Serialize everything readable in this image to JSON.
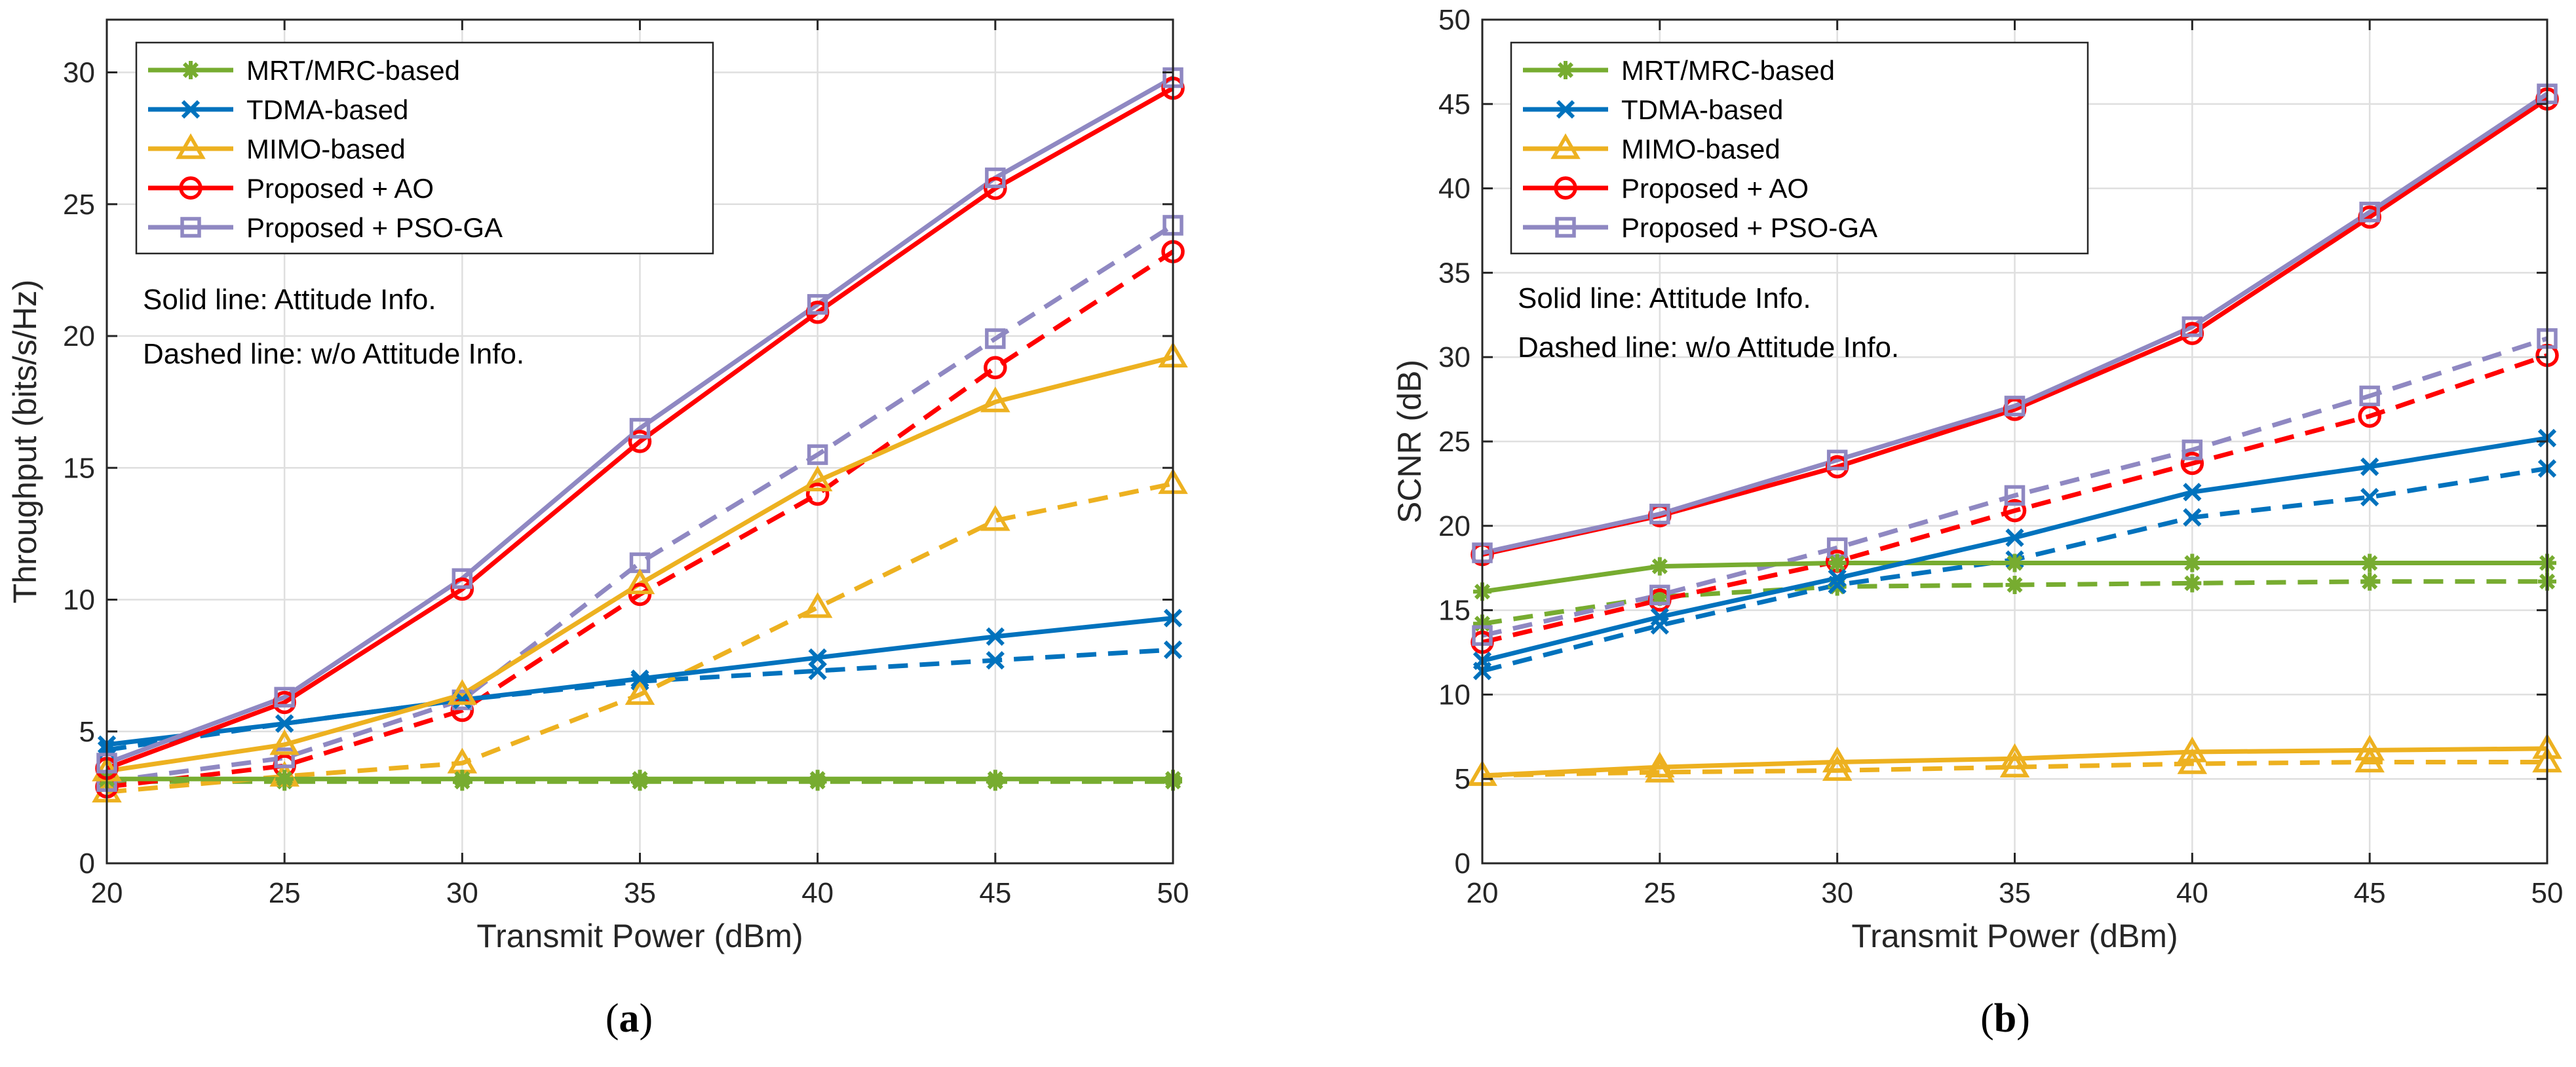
{
  "legend_entries": [
    {
      "name": "MRT/MRC-based",
      "color": "#77ac30",
      "marker": "asterisk"
    },
    {
      "name": "TDMA-based",
      "color": "#0072bd",
      "marker": "x"
    },
    {
      "name": "MIMO-based",
      "color": "#edb120",
      "marker": "triangle"
    },
    {
      "name": "Proposed + AO",
      "color": "#ff0000",
      "marker": "circle"
    },
    {
      "name": "Proposed + PSO-GA",
      "color": "#8f88c2",
      "marker": "square"
    }
  ],
  "chart_data": [
    {
      "type": "line",
      "caption": {
        "open": "(",
        "letter": "a",
        "close": ")"
      },
      "xlabel": "Transmit Power (dBm)",
      "ylabel": "Throughput (bits/s/Hz)",
      "xlim": [
        20,
        50
      ],
      "ylim": [
        0,
        32
      ],
      "xticks": [
        20,
        25,
        30,
        35,
        40,
        45,
        50
      ],
      "yticks": [
        0,
        5,
        10,
        15,
        20,
        25,
        30
      ],
      "grid": true,
      "legend_position": "top-left",
      "annotations": [
        "Solid line: Attitude Info.",
        "Dashed line: w/o Attitude Info."
      ],
      "x": [
        20,
        25,
        30,
        35,
        40,
        45,
        50
      ],
      "series": [
        {
          "name": "MRT/MRC-based",
          "line_style": "solid",
          "values": [
            3.2,
            3.2,
            3.2,
            3.2,
            3.2,
            3.2,
            3.2
          ]
        },
        {
          "name": "TDMA-based",
          "line_style": "solid",
          "values": [
            4.5,
            5.3,
            6.2,
            7.0,
            7.8,
            8.6,
            9.3
          ]
        },
        {
          "name": "MIMO-based",
          "line_style": "solid",
          "values": [
            3.5,
            4.5,
            6.4,
            10.6,
            14.5,
            17.5,
            19.2
          ]
        },
        {
          "name": "Proposed + AO",
          "line_style": "solid",
          "values": [
            3.6,
            6.1,
            10.4,
            16.0,
            20.9,
            25.6,
            29.4
          ]
        },
        {
          "name": "Proposed + PSO-GA",
          "line_style": "solid",
          "values": [
            3.8,
            6.3,
            10.8,
            16.5,
            21.2,
            26.0,
            29.8
          ]
        },
        {
          "name": "MRT/MRC-based",
          "line_style": "dashed",
          "values": [
            3.1,
            3.1,
            3.1,
            3.1,
            3.1,
            3.1,
            3.1
          ]
        },
        {
          "name": "TDMA-based",
          "line_style": "dashed",
          "values": [
            4.3,
            5.3,
            6.2,
            6.9,
            7.3,
            7.7,
            8.1
          ]
        },
        {
          "name": "MIMO-based",
          "line_style": "dashed",
          "values": [
            2.7,
            3.3,
            3.8,
            6.4,
            9.7,
            13.0,
            14.4
          ]
        },
        {
          "name": "Proposed + AO",
          "line_style": "dashed",
          "values": [
            2.9,
            3.7,
            5.8,
            10.2,
            14.0,
            18.8,
            23.2
          ]
        },
        {
          "name": "Proposed + PSO-GA",
          "line_style": "dashed",
          "values": [
            3.1,
            4.0,
            6.2,
            11.4,
            15.5,
            19.9,
            24.2
          ]
        }
      ]
    },
    {
      "type": "line",
      "caption": {
        "open": "(",
        "letter": "b",
        "close": ")"
      },
      "xlabel": "Transmit Power (dBm)",
      "ylabel": "SCNR (dB)",
      "xlim": [
        20,
        50
      ],
      "ylim": [
        0,
        50
      ],
      "xticks": [
        20,
        25,
        30,
        35,
        40,
        45,
        50
      ],
      "yticks": [
        0,
        5,
        10,
        15,
        20,
        25,
        30,
        35,
        40,
        45,
        50
      ],
      "grid": true,
      "legend_position": "top-left",
      "annotations": [
        "Solid line: Attitude Info.",
        "Dashed line: w/o Attitude Info."
      ],
      "x": [
        20,
        25,
        30,
        35,
        40,
        45,
        50
      ],
      "series": [
        {
          "name": "MRT/MRC-based",
          "line_style": "solid",
          "values": [
            16.1,
            17.6,
            17.8,
            17.8,
            17.8,
            17.8,
            17.8
          ]
        },
        {
          "name": "TDMA-based",
          "line_style": "solid",
          "values": [
            12.0,
            14.6,
            16.9,
            19.3,
            22.0,
            23.5,
            25.2
          ]
        },
        {
          "name": "MIMO-based",
          "line_style": "solid",
          "values": [
            5.2,
            5.7,
            6.0,
            6.2,
            6.6,
            6.7,
            6.8
          ]
        },
        {
          "name": "Proposed + AO",
          "line_style": "solid",
          "values": [
            18.3,
            20.6,
            23.5,
            26.9,
            31.4,
            38.3,
            45.3
          ]
        },
        {
          "name": "Proposed + PSO-GA",
          "line_style": "solid",
          "values": [
            18.4,
            20.7,
            23.9,
            27.1,
            31.8,
            38.6,
            45.6
          ]
        },
        {
          "name": "MRT/MRC-based",
          "line_style": "dashed",
          "values": [
            14.2,
            15.8,
            16.4,
            16.5,
            16.6,
            16.7,
            16.7
          ]
        },
        {
          "name": "TDMA-based",
          "line_style": "dashed",
          "values": [
            11.4,
            14.1,
            16.5,
            18.0,
            20.5,
            21.7,
            23.4
          ]
        },
        {
          "name": "MIMO-based",
          "line_style": "dashed",
          "values": [
            5.2,
            5.4,
            5.5,
            5.7,
            5.9,
            6.0,
            6.0
          ]
        },
        {
          "name": "Proposed + AO",
          "line_style": "dashed",
          "values": [
            13.1,
            15.6,
            17.9,
            20.9,
            23.7,
            26.5,
            30.1
          ]
        },
        {
          "name": "Proposed + PSO-GA",
          "line_style": "dashed",
          "values": [
            13.5,
            15.9,
            18.7,
            21.8,
            24.5,
            27.7,
            31.1
          ]
        }
      ]
    }
  ]
}
